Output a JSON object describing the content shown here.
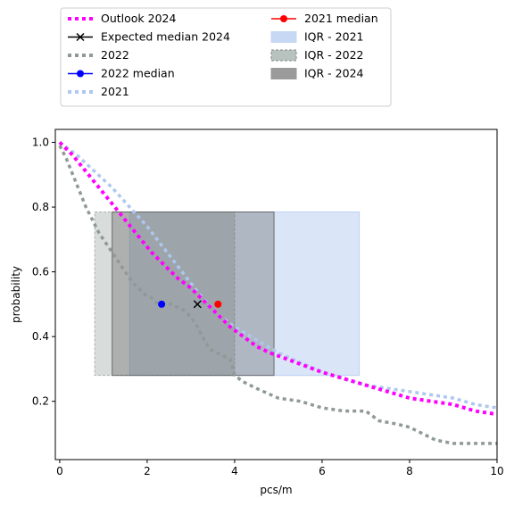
{
  "chart_data": {
    "type": "line",
    "xlabel": "pcs/m",
    "ylabel": "probability",
    "xlim": [
      -0.1,
      10
    ],
    "ylim": [
      0.02,
      1.04
    ],
    "x_ticks": [
      "0",
      "2",
      "4",
      "6",
      "8",
      "10"
    ],
    "y_ticks": [
      "0.2",
      "0.4",
      "0.6",
      "0.8",
      "1.0"
    ],
    "grid": false,
    "legend_placement": "above the plot, two columns",
    "legend": [
      {
        "label": "Outlook 2024",
        "kind": "dotted-line",
        "color": "#ff00ff"
      },
      {
        "label": "Expected median 2024",
        "kind": "line-x-marker",
        "color": "#000000"
      },
      {
        "label": "2022",
        "kind": "dotted-line",
        "color": "#8f9a96"
      },
      {
        "label": "2022 median",
        "kind": "line-dot-marker",
        "color": "#0000ff"
      },
      {
        "label": "2021",
        "kind": "dotted-line",
        "color": "#aec7ee"
      },
      {
        "label": "2021 median",
        "kind": "line-dot-marker",
        "color": "#ff0000"
      },
      {
        "label": "IQR - 2021",
        "kind": "patch",
        "color": "#c7d8f4"
      },
      {
        "label": "IQR - 2022",
        "kind": "patch-dashed",
        "color": "#b8c2bf"
      },
      {
        "label": "IQR - 2024",
        "kind": "patch",
        "color": "#9a9a9a"
      }
    ],
    "series": [
      {
        "name": "Outlook 2024",
        "color": "#ff00ff",
        "x": [
          0,
          0.3,
          0.6,
          0.9,
          1.2,
          1.5,
          1.8,
          2.1,
          2.4,
          2.7,
          3.0,
          3.3,
          3.6,
          3.9,
          4.2,
          4.5,
          4.8,
          5.2,
          5.6,
          6.0,
          6.5,
          7.0,
          7.5,
          8.0,
          8.5,
          9.0,
          9.5,
          10.0
        ],
        "y": [
          1.0,
          0.96,
          0.91,
          0.86,
          0.81,
          0.76,
          0.71,
          0.66,
          0.62,
          0.58,
          0.55,
          0.51,
          0.47,
          0.43,
          0.4,
          0.37,
          0.35,
          0.33,
          0.31,
          0.29,
          0.27,
          0.25,
          0.23,
          0.21,
          0.2,
          0.19,
          0.17,
          0.16
        ]
      },
      {
        "name": "2022",
        "color": "#8f9a96",
        "x": [
          0,
          0.15,
          0.3,
          0.45,
          0.6,
          0.75,
          0.9,
          1.05,
          1.2,
          1.35,
          1.5,
          1.65,
          1.8,
          1.95,
          2.1,
          2.25,
          2.4,
          2.55,
          2.7,
          2.85,
          3.0,
          3.15,
          3.3,
          3.45,
          3.6,
          3.75,
          3.9,
          4.0,
          4.2,
          4.5,
          5.0,
          5.5,
          6.0,
          6.5,
          7.0,
          7.3,
          7.7,
          8.0,
          8.3,
          8.6,
          9.0,
          9.3,
          9.6,
          10.0
        ],
        "y": [
          0.99,
          0.95,
          0.9,
          0.85,
          0.8,
          0.76,
          0.72,
          0.69,
          0.66,
          0.63,
          0.6,
          0.57,
          0.55,
          0.53,
          0.52,
          0.5,
          0.5,
          0.5,
          0.49,
          0.48,
          0.46,
          0.43,
          0.39,
          0.36,
          0.35,
          0.34,
          0.33,
          0.28,
          0.26,
          0.24,
          0.21,
          0.2,
          0.18,
          0.17,
          0.17,
          0.14,
          0.13,
          0.12,
          0.1,
          0.08,
          0.07,
          0.07,
          0.07,
          0.07
        ]
      },
      {
        "name": "2021",
        "color": "#aec7ee",
        "x": [
          0,
          0.4,
          0.8,
          1.2,
          1.6,
          2.0,
          2.4,
          2.8,
          3.2,
          3.6,
          4.0,
          4.5,
          5.0,
          5.5,
          6.0,
          6.5,
          7.0,
          7.5,
          8.0,
          8.5,
          9.0,
          9.5,
          10.0
        ],
        "y": [
          1.0,
          0.96,
          0.91,
          0.86,
          0.8,
          0.74,
          0.67,
          0.6,
          0.53,
          0.47,
          0.43,
          0.39,
          0.35,
          0.32,
          0.29,
          0.27,
          0.25,
          0.24,
          0.23,
          0.22,
          0.21,
          0.19,
          0.18
        ]
      }
    ],
    "markers": [
      {
        "name": "Expected median 2024",
        "x": 3.15,
        "y": 0.5,
        "shape": "x",
        "color": "#000000"
      },
      {
        "name": "2022 median",
        "x": 2.33,
        "y": 0.5,
        "shape": "dot",
        "color": "#0000ff"
      },
      {
        "name": "2021 median",
        "x": 3.62,
        "y": 0.5,
        "shape": "dot",
        "color": "#ff0000"
      }
    ],
    "iqr_bands": [
      {
        "name": "IQR - 2021",
        "x0": 1.6,
        "x1": 6.85,
        "y0": 0.28,
        "y1": 0.785,
        "color": "#aec7ee",
        "opacity": 0.45,
        "dashed": false
      },
      {
        "name": "IQR - 2022",
        "x0": 0.8,
        "x1": 4.0,
        "y0": 0.28,
        "y1": 0.785,
        "color": "#8f9a96",
        "opacity": 0.35,
        "dashed": true
      },
      {
        "name": "IQR - 2024",
        "x0": 1.2,
        "x1": 4.9,
        "y0": 0.28,
        "y1": 0.785,
        "color": "#555555",
        "opacity": 0.32,
        "dashed": false
      }
    ]
  }
}
